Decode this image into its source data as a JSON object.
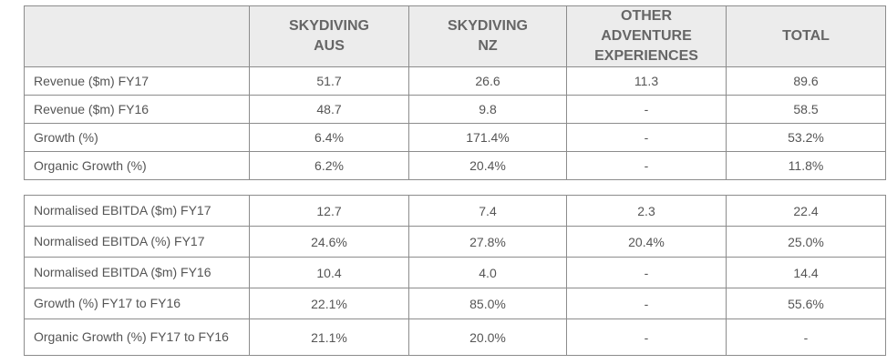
{
  "headers": [
    "",
    "SKYDIVING\nAUS",
    "SKYDIVING\nNZ",
    "OTHER\nADVENTURE\nEXPERIENCES",
    "TOTAL"
  ],
  "revenue_rows": [
    {
      "label": "Revenue ($m) FY17",
      "aus": "51.7",
      "nz": "26.6",
      "other": "11.3",
      "total": "89.6"
    },
    {
      "label": "Revenue ($m) FY16",
      "aus": "48.7",
      "nz": "9.8",
      "other": "-",
      "total": "58.5"
    },
    {
      "label": "Growth (%)",
      "aus": "6.4%",
      "nz": "171.4%",
      "other": "-",
      "total": "53.2%"
    },
    {
      "label": "Organic Growth (%)",
      "aus": "6.2%",
      "nz": "20.4%",
      "other": "-",
      "total": "11.8%"
    }
  ],
  "ebitda_rows": [
    {
      "label": "Normalised EBITDA ($m) FY17",
      "aus": "12.7",
      "nz": "7.4",
      "other": "2.3",
      "total": "22.4"
    },
    {
      "label": "Normalised EBITDA (%) FY17",
      "aus": "24.6%",
      "nz": "27.8%",
      "other": "20.4%",
      "total": "25.0%"
    },
    {
      "label": "Normalised EBITDA ($m) FY16",
      "aus": "10.4",
      "nz": "4.0",
      "other": "-",
      "total": "14.4"
    },
    {
      "label": "Growth (%) FY17 to FY16",
      "aus": "22.1%",
      "nz": "85.0%",
      "other": "-",
      "total": "55.6%"
    },
    {
      "label": "Organic Growth (%) FY17 to FY16",
      "aus": "21.1%",
      "nz": "20.0%",
      "other": "-",
      "total": "-"
    }
  ]
}
